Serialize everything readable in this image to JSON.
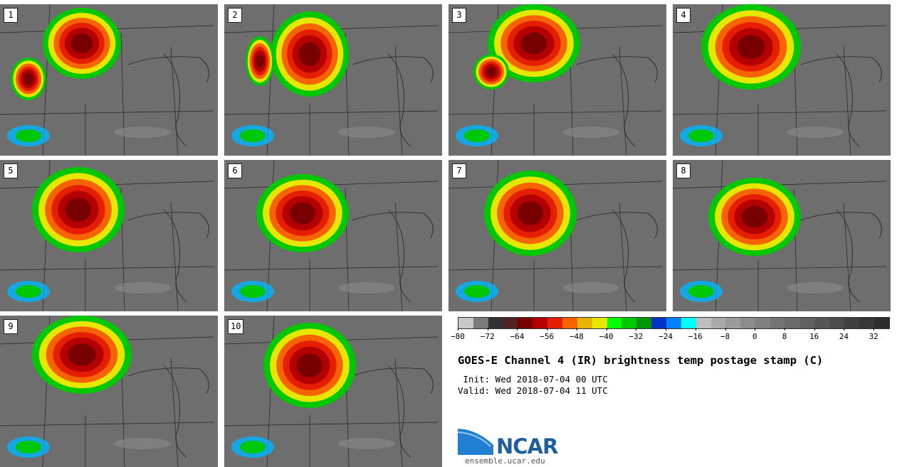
{
  "panels": [
    "1",
    "2",
    "3",
    "4",
    "5",
    "6",
    "7",
    "8",
    "9",
    "10"
  ],
  "colorbar": {
    "colors": [
      "#c8c8c8",
      "#7a7a7a",
      "#323232",
      "#502222",
      "#780000",
      "#b40000",
      "#e61e00",
      "#f56400",
      "#e6b400",
      "#e6e600",
      "#00ff00",
      "#00c800",
      "#009600",
      "#0032c8",
      "#0082ff",
      "#00ffff",
      "#bebebe",
      "#aaaaaa",
      "#9b9b9b",
      "#8c8c8c",
      "#808080",
      "#737373",
      "#6a6a6a",
      "#606060",
      "#555555",
      "#4b4b4b",
      "#404040",
      "#363636",
      "#2c2c2c"
    ],
    "ticks": [
      "−80",
      "−72",
      "−64",
      "−56",
      "−48",
      "−40",
      "−32",
      "−24",
      "−16",
      "−8",
      "0",
      "8",
      "16",
      "24",
      "32"
    ]
  },
  "title": "GOES-E Channel 4 (IR) brightness temp postage stamp (C)",
  "init": " Init: Wed 2018-07-04 00 UTC",
  "valid": "Valid: Wed 2018-07-04 11 UTC",
  "logo": {
    "text": "NCAR",
    "site": "ensemble.ucar.edu"
  }
}
